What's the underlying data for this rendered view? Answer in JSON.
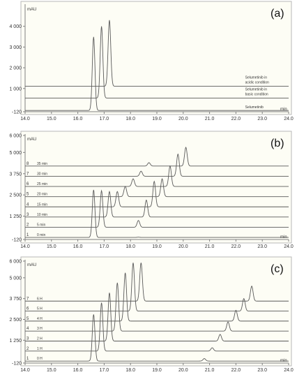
{
  "panels": [
    {
      "id": "a",
      "panel_label": "(a)",
      "y_unit_label": "mAU",
      "x_unit_label": "min",
      "chart_data": {
        "type": "line",
        "title": "",
        "xlabel": "min",
        "ylabel": "mAU",
        "xlim": [
          14.0,
          24.0
        ],
        "ylim": [
          -120,
          5000
        ],
        "x_ticks": [
          "14.0",
          "15.0",
          "16.0",
          "17.0",
          "18.0",
          "19.0",
          "20.0",
          "21.0",
          "22.0",
          "23.0",
          "24.0"
        ],
        "y_ticks": [
          {
            "label": "-120",
            "value": -120
          },
          {
            "label": "1 000",
            "value": 1000
          },
          {
            "label": "2 000",
            "value": 2000
          },
          {
            "label": "3 000",
            "value": 3000
          },
          {
            "label": "4 000",
            "value": 4000
          }
        ],
        "grid": false,
        "series": [
          {
            "name": "Selumetinib",
            "trace_number": "",
            "baseline": -60,
            "peaks": [
              {
                "x": 16.6,
                "height": 3550,
                "width": 0.05
              }
            ]
          },
          {
            "name": "Selumetinib in basic condition",
            "trace_number": "",
            "baseline": 540,
            "peaks": [
              {
                "x": 16.9,
                "height": 3460,
                "width": 0.05
              }
            ]
          },
          {
            "name": "Selumetinib in acidic condition",
            "trace_number": "",
            "baseline": 1110,
            "peaks": [
              {
                "x": 17.2,
                "height": 3190,
                "width": 0.05
              }
            ]
          }
        ]
      }
    },
    {
      "id": "b",
      "panel_label": "(b)",
      "y_unit_label": "mAU",
      "x_unit_label": "min",
      "chart_data": {
        "type": "line",
        "title": "",
        "xlabel": "min",
        "ylabel": "mAU",
        "xlim": [
          14.0,
          24.0
        ],
        "ylim": [
          -120,
          6000
        ],
        "x_ticks": [
          "14.0",
          "15.0",
          "16.0",
          "17.0",
          "18.0",
          "19.0",
          "20.0",
          "21.0",
          "22.0",
          "23.0",
          "24.0"
        ],
        "y_ticks": [
          {
            "label": "-120",
            "value": -120
          },
          {
            "label": "1 250",
            "value": 1250
          },
          {
            "label": "2 500",
            "value": 2500
          },
          {
            "label": "3 750",
            "value": 3750
          },
          {
            "label": "5 000",
            "value": 5000
          },
          {
            "label": "6 000",
            "value": 6000
          }
        ],
        "grid": false,
        "series": [
          {
            "name": "0 min",
            "trace_number": "1",
            "baseline": 0,
            "peaks": [
              {
                "x": 16.6,
                "height": 2800,
                "width": 0.05
              },
              {
                "x": 18.3,
                "height": 15,
                "width": 0.05
              }
            ]
          },
          {
            "name": "5 min",
            "trace_number": "2",
            "baseline": 600,
            "peaks": [
              {
                "x": 16.9,
                "height": 2150,
                "width": 0.05
              },
              {
                "x": 18.3,
                "height": 400,
                "width": 0.05
              }
            ]
          },
          {
            "name": "10 min",
            "trace_number": "3",
            "baseline": 1200,
            "peaks": [
              {
                "x": 17.2,
                "height": 1500,
                "width": 0.05
              },
              {
                "x": 18.6,
                "height": 1000,
                "width": 0.05
              }
            ]
          },
          {
            "name": "15 min",
            "trace_number": "4",
            "baseline": 1800,
            "peaks": [
              {
                "x": 17.5,
                "height": 900,
                "width": 0.05
              },
              {
                "x": 18.9,
                "height": 1500,
                "width": 0.05
              }
            ]
          },
          {
            "name": "20 min",
            "trace_number": "5",
            "baseline": 2400,
            "peaks": [
              {
                "x": 17.8,
                "height": 600,
                "width": 0.05
              },
              {
                "x": 19.2,
                "height": 1050,
                "width": 0.05
              }
            ]
          },
          {
            "name": "25 min",
            "trace_number": "6",
            "baseline": 3000,
            "peaks": [
              {
                "x": 18.1,
                "height": 450,
                "width": 0.05
              },
              {
                "x": 19.5,
                "height": 1200,
                "width": 0.05
              }
            ]
          },
          {
            "name": "30 min",
            "trace_number": "7",
            "baseline": 3600,
            "peaks": [
              {
                "x": 18.4,
                "height": 300,
                "width": 0.05
              },
              {
                "x": 19.8,
                "height": 1300,
                "width": 0.05
              }
            ]
          },
          {
            "name": "35 min",
            "trace_number": "8",
            "baseline": 4200,
            "peaks": [
              {
                "x": 18.7,
                "height": 200,
                "width": 0.05
              },
              {
                "x": 20.1,
                "height": 1100,
                "width": 0.05
              }
            ]
          }
        ]
      }
    },
    {
      "id": "c",
      "panel_label": "(c)",
      "y_unit_label": "mAU",
      "x_unit_label": "min",
      "chart_data": {
        "type": "line",
        "title": "",
        "xlabel": "min",
        "ylabel": "mAU",
        "xlim": [
          14.0,
          24.0
        ],
        "ylim": [
          -120,
          6000
        ],
        "x_ticks": [
          "14.0",
          "15.0",
          "16.0",
          "17.0",
          "18.0",
          "19.0",
          "20.0",
          "21.0",
          "22.0",
          "23.0",
          "24.0"
        ],
        "y_ticks": [
          {
            "label": "-120",
            "value": -120
          },
          {
            "label": "1 250",
            "value": 1250
          },
          {
            "label": "2 500",
            "value": 2500
          },
          {
            "label": "3 750",
            "value": 3750
          },
          {
            "label": "5 000",
            "value": 5000
          },
          {
            "label": "6 000",
            "value": 6000
          }
        ],
        "grid": false,
        "series": [
          {
            "name": "0 H",
            "trace_number": "1",
            "baseline": 0,
            "peaks": [
              {
                "x": 16.6,
                "height": 2800,
                "width": 0.05
              },
              {
                "x": 20.8,
                "height": 150,
                "width": 0.05
              }
            ]
          },
          {
            "name": "1 H",
            "trace_number": "2",
            "baseline": 600,
            "peaks": [
              {
                "x": 16.9,
                "height": 2900,
                "width": 0.05
              },
              {
                "x": 21.1,
                "height": 200,
                "width": 0.05
              }
            ]
          },
          {
            "name": "2 H",
            "trace_number": "3",
            "baseline": 1200,
            "peaks": [
              {
                "x": 17.2,
                "height": 2900,
                "width": 0.05
              },
              {
                "x": 21.4,
                "height": 400,
                "width": 0.05
              }
            ]
          },
          {
            "name": "3 H",
            "trace_number": "4",
            "baseline": 1800,
            "peaks": [
              {
                "x": 17.5,
                "height": 2900,
                "width": 0.05
              },
              {
                "x": 21.7,
                "height": 550,
                "width": 0.05
              }
            ]
          },
          {
            "name": "4 H",
            "trace_number": "5",
            "baseline": 2400,
            "peaks": [
              {
                "x": 17.8,
                "height": 2900,
                "width": 0.05
              },
              {
                "x": 22.0,
                "height": 650,
                "width": 0.05
              }
            ]
          },
          {
            "name": "5 H",
            "trace_number": "6",
            "baseline": 3000,
            "peaks": [
              {
                "x": 18.1,
                "height": 2900,
                "width": 0.05
              },
              {
                "x": 22.3,
                "height": 750,
                "width": 0.05
              }
            ]
          },
          {
            "name": "6 H",
            "trace_number": "7",
            "baseline": 3600,
            "peaks": [
              {
                "x": 18.4,
                "height": 2300,
                "width": 0.05
              },
              {
                "x": 22.6,
                "height": 900,
                "width": 0.05
              }
            ]
          }
        ]
      }
    }
  ],
  "colors": {
    "plot_background": "#fdfdf5",
    "figure_background": "#ffffff",
    "trace": "#5a5a5a",
    "axis": "#808080",
    "text": "#333333"
  }
}
